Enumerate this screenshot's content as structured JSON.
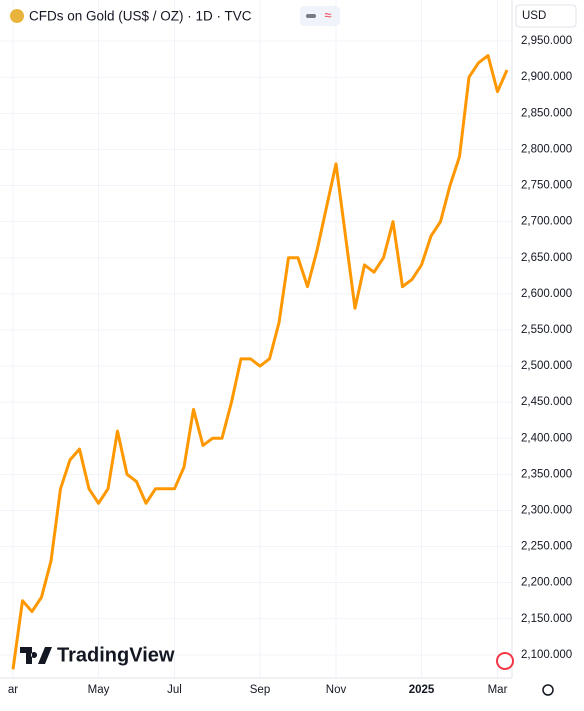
{
  "chart_data": {
    "type": "line",
    "title": "CFDs on Gold (US$ / OZ) · 1D · TVC",
    "currency": "USD",
    "brand": "TradingView",
    "categories": [
      "ar",
      null,
      null,
      null,
      null,
      null,
      null,
      null,
      null,
      "May",
      null,
      null,
      null,
      null,
      null,
      null,
      null,
      "Jul",
      null,
      null,
      null,
      null,
      null,
      null,
      null,
      null,
      "Sep",
      null,
      null,
      null,
      null,
      null,
      null,
      null,
      "Nov",
      null,
      null,
      null,
      null,
      null,
      null,
      null,
      null,
      "2025",
      null,
      null,
      null,
      null,
      null,
      null,
      null,
      "Mar",
      null
    ],
    "values": [
      2080,
      2175,
      2160,
      2180,
      2230,
      2330,
      2370,
      2385,
      2330,
      2310,
      2330,
      2410,
      2350,
      2340,
      2310,
      2330,
      2330,
      2330,
      2360,
      2440,
      2390,
      2400,
      2400,
      2450,
      2510,
      2510,
      2500,
      2510,
      2560,
      2650,
      2650,
      2610,
      2660,
      2720,
      2780,
      2680,
      2580,
      2640,
      2630,
      2650,
      2700,
      2610,
      2620,
      2640,
      2680,
      2700,
      2750,
      2790,
      2900,
      2920,
      2930,
      2880,
      2910
    ],
    "color": "#ff9800",
    "ylim": [
      2068,
      3000
    ],
    "yticks": [
      {
        "value": 2100,
        "label": "2,100.000"
      },
      {
        "value": 2150,
        "label": "2,150.000"
      },
      {
        "value": 2200,
        "label": "2,200.000"
      },
      {
        "value": 2250,
        "label": "2,250.000"
      },
      {
        "value": 2300,
        "label": "2,300.000"
      },
      {
        "value": 2350,
        "label": "2,350.000"
      },
      {
        "value": 2400,
        "label": "2,400.000"
      },
      {
        "value": 2450,
        "label": "2,450.000"
      },
      {
        "value": 2500,
        "label": "2,500.000"
      },
      {
        "value": 2550,
        "label": "2,550.000"
      },
      {
        "value": 2600,
        "label": "2,600.000"
      },
      {
        "value": 2650,
        "label": "2,650.000"
      },
      {
        "value": 2700,
        "label": "2,700.000"
      },
      {
        "value": 2750,
        "label": "2,750.000"
      },
      {
        "value": 2800,
        "label": "2,800.000"
      },
      {
        "value": 2850,
        "label": "2,850.000"
      },
      {
        "value": 2900,
        "label": "2,900.000"
      },
      {
        "value": 2950,
        "label": "2,950.000"
      }
    ],
    "grid": true
  }
}
